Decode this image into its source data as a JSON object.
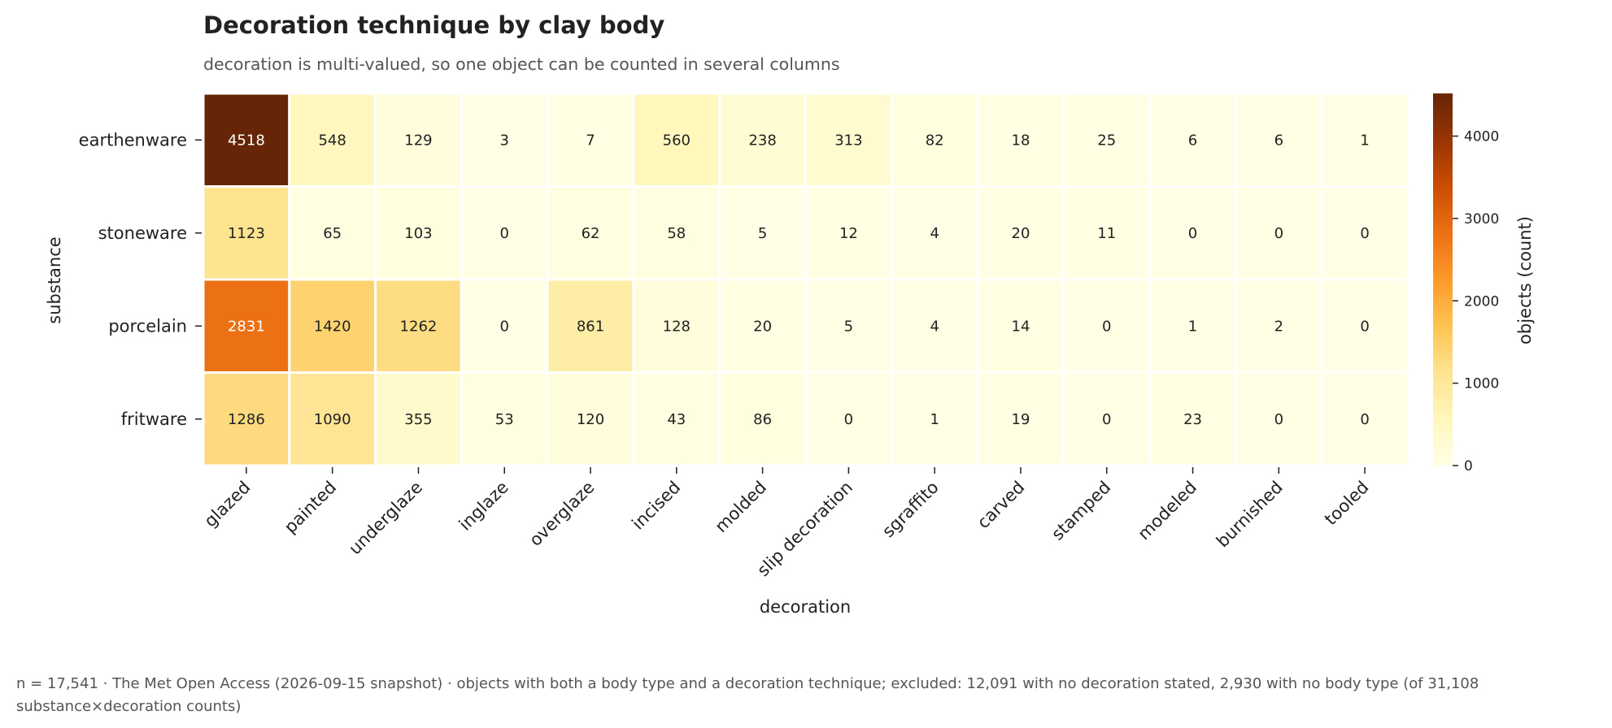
{
  "chart_data": {
    "type": "heatmap",
    "title": "Decoration technique by clay body",
    "subtitle": "decoration is multi-valued, so one object can be counted in several columns",
    "xlabel": "decoration",
    "ylabel": "substance",
    "colorbar_label": "objects (count)",
    "colorbar_ticks": [
      0,
      1000,
      2000,
      3000,
      4000
    ],
    "colorbar_range": [
      0,
      4518
    ],
    "colormap": "YlOrBr",
    "rows": [
      "earthenware",
      "stoneware",
      "porcelain",
      "fritware"
    ],
    "columns": [
      "glazed",
      "painted",
      "underglaze",
      "inglaze",
      "overglaze",
      "incised",
      "molded",
      "slip decoration",
      "sgraffito",
      "carved",
      "stamped",
      "modeled",
      "burnished",
      "tooled"
    ],
    "values": [
      [
        4518,
        548,
        129,
        3,
        7,
        560,
        238,
        313,
        82,
        18,
        25,
        6,
        6,
        1
      ],
      [
        1123,
        65,
        103,
        0,
        62,
        58,
        5,
        12,
        4,
        20,
        11,
        0,
        0,
        0
      ],
      [
        2831,
        1420,
        1262,
        0,
        861,
        128,
        20,
        5,
        4,
        14,
        0,
        1,
        2,
        0
      ],
      [
        1286,
        1090,
        355,
        53,
        120,
        43,
        86,
        0,
        1,
        19,
        0,
        23,
        0,
        0
      ]
    ]
  },
  "footnote": "n = 17,541 · The Met Open Access (2026-09-15 snapshot) · objects with both a body type and a decoration technique; excluded: 12,091 with no decoration stated, 2,930 with no body type (of 31,108 substance×decoration counts)"
}
